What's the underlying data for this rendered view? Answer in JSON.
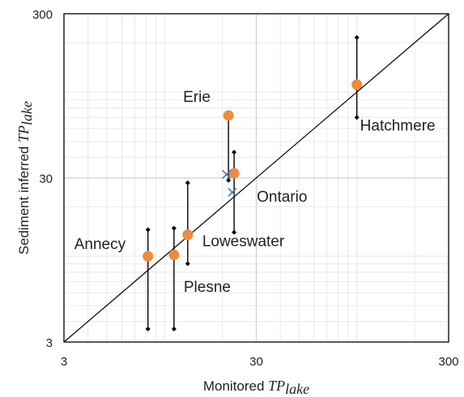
{
  "chart_data": {
    "type": "scatter",
    "x_scale": "log",
    "y_scale": "log",
    "xlim": [
      3,
      300
    ],
    "ylim": [
      3,
      300
    ],
    "x_ticks": [
      "3",
      "30",
      "300"
    ],
    "y_ticks": [
      "3",
      "30",
      "300"
    ],
    "xlabel_main": "Monitored ",
    "xlabel_var": "TP",
    "xlabel_sub": "lake",
    "ylabel_main": "Sediment inferred ",
    "ylabel_var": "TP",
    "ylabel_sub": "lake",
    "grid": true,
    "reference_line": "1:1",
    "colors": {
      "inferred": "#f08a3c",
      "monitored_marker": "#4472c4",
      "range": "#000000"
    },
    "points": [
      {
        "label": "Annecy",
        "x": 8.2,
        "y": 10.0,
        "y_low": 3.6,
        "y_high": 14.5
      },
      {
        "label": "Plesne",
        "x": 11.2,
        "y": 10.2,
        "y_low": 3.6,
        "y_high": 14.8
      },
      {
        "label": "Loweswater",
        "x": 13.2,
        "y": 13.5,
        "y_low": 9.0,
        "y_high": 28.0
      },
      {
        "label": "Erie",
        "x": 21.5,
        "y": 72.0,
        "y_low": 29.0,
        "y_high": 75.0
      },
      {
        "label": "Ontario",
        "x": 23.0,
        "y": 32.0,
        "y_low": 14.0,
        "y_high": 43.0
      },
      {
        "label": "Hatchmere",
        "x": 100.0,
        "y": 111.0,
        "y_low": 70.0,
        "y_high": 215.0
      }
    ],
    "monitored_markers": [
      {
        "x": 21.0,
        "y": 31.5
      },
      {
        "x": 22.5,
        "y": 24.5
      }
    ]
  }
}
